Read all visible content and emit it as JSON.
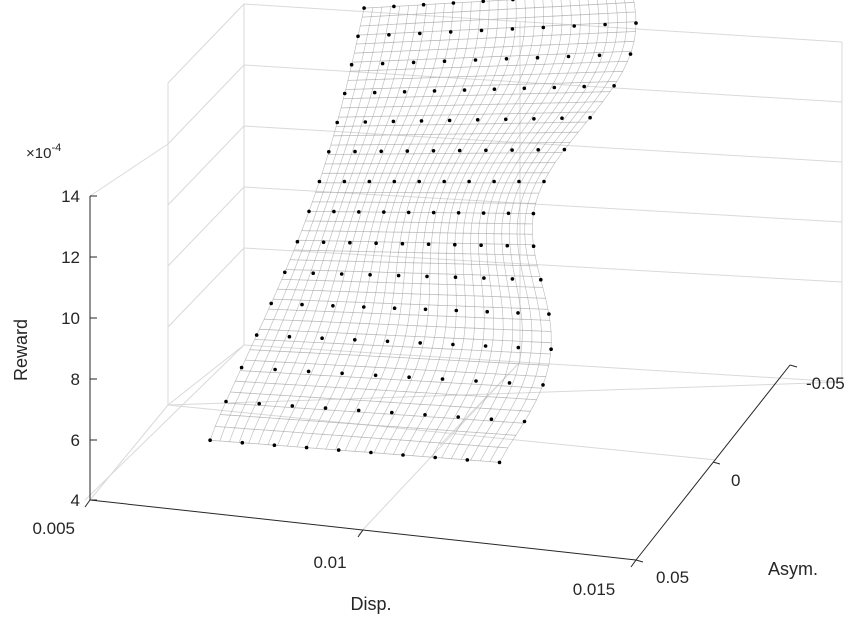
{
  "chart_data": {
    "type": "surface3d",
    "title": "",
    "axes": {
      "x": {
        "label": "Disp.",
        "ticks": [
          "0.005",
          "0.01",
          "0.015"
        ],
        "range": [
          0.005,
          0.015
        ]
      },
      "y": {
        "label": "Asym.",
        "ticks": [
          "-0.05",
          "0",
          "0.05"
        ],
        "range": [
          -0.05,
          0.05
        ]
      },
      "z": {
        "label": "Reward",
        "ticks": [
          "4",
          "6",
          "8",
          "10",
          "12",
          "14"
        ],
        "range": [
          4,
          14
        ],
        "exponent": "×10",
        "exponent_power": "-4"
      }
    },
    "grid": true,
    "surface_color": "#bdbdbd",
    "marker_color": "#000000",
    "surface_description": "Bent sheet of points: reward rises from ~6.5e-4 at low dispersion / positive asymmetry to ~14e-4 at high dispersion / negative asymmetry; black dots mark sampled grid points.",
    "series": [
      {
        "kind": "surface-grid",
        "disp_range": [
          0.0072,
          0.0125
        ],
        "asym_range": [
          -0.05,
          0.05
        ],
        "reward_range": [
          6.5,
          14.2
        ]
      }
    ]
  }
}
